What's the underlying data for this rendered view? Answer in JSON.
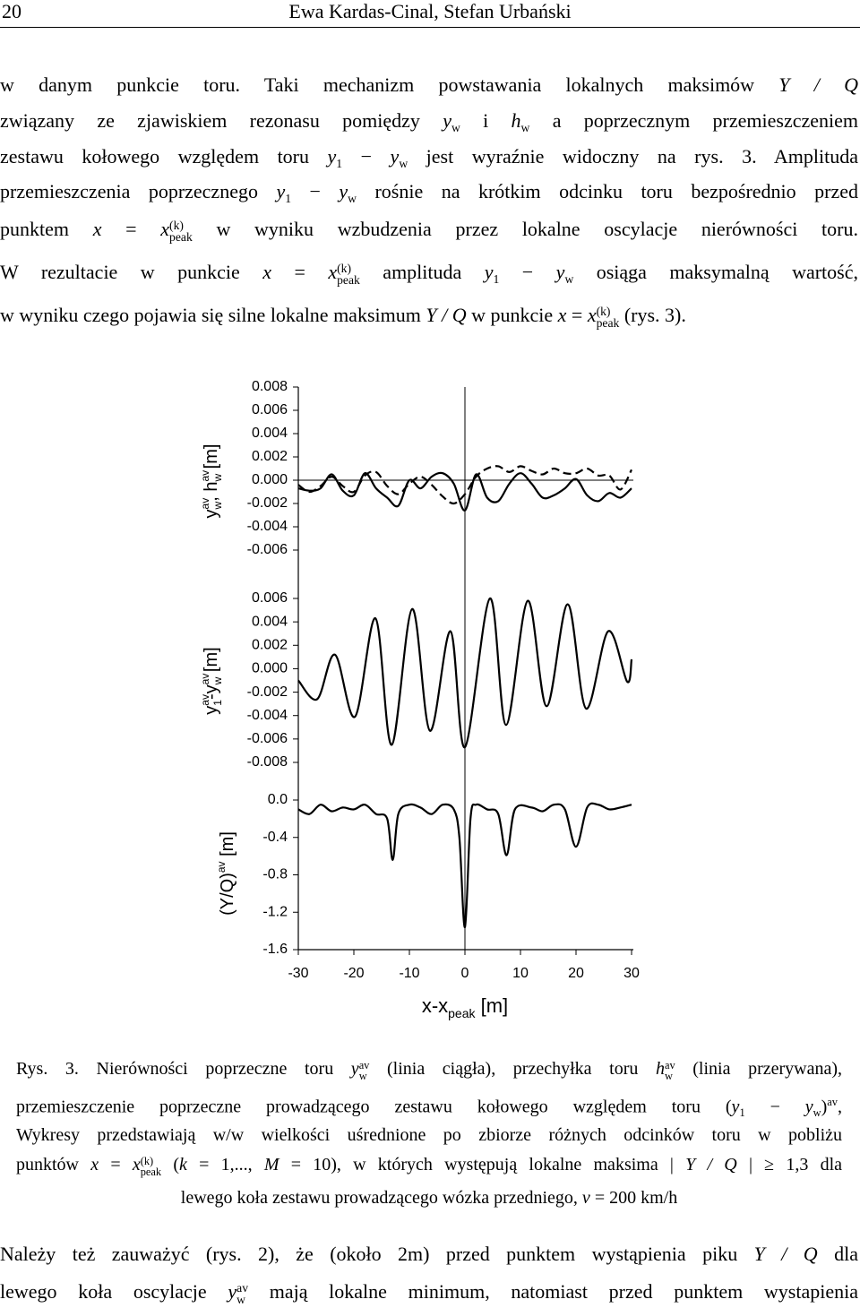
{
  "header": {
    "page": "20",
    "authors": "Ewa Kardas-Cinal, Stefan Urbański"
  },
  "text_top": {
    "lines": [
      [
        "w danym punkcie toru. Taki mechanizm powstawania lokalnych maksimów ",
        {
          "i": "Y / Q"
        }
      ],
      [
        "związany ze zjawiskiem rezonasu pomiędzy ",
        {
          "i": "y"
        },
        {
          "sub": "w"
        },
        " i ",
        {
          "i": "h"
        },
        {
          "sub": "w"
        },
        " a poprzecznym przemieszczeniem"
      ],
      [
        "zestawu kołowego względem toru ",
        {
          "i": "y"
        },
        {
          "sub": "1"
        },
        " − ",
        {
          "i": "y"
        },
        {
          "sub": "w"
        },
        " jest wyraźnie widoczny na rys. 3. Amplituda"
      ],
      [
        "przemieszczenia poprzecznego ",
        {
          "i": "y"
        },
        {
          "sub": "1"
        },
        " − ",
        {
          "i": "y"
        },
        {
          "sub": "w"
        },
        " rośnie na krótkim odcinku toru bezpośrednio przed"
      ],
      [
        "punktem ",
        {
          "i": "x"
        },
        " = ",
        {
          "i": "x"
        },
        {
          "sub": "peak",
          "sup": "(k)"
        },
        " w wyniku wzbudzenia przez lokalne oscylacje nierówności toru."
      ],
      [
        "W rezultacie w punkcie ",
        {
          "i": "x"
        },
        " = ",
        {
          "i": "x"
        },
        {
          "sub": "peak",
          "sup": "(k)"
        },
        " amplituda ",
        {
          "i": "y"
        },
        {
          "sub": "1"
        },
        " − ",
        {
          "i": "y"
        },
        {
          "sub": "w"
        },
        " osiąga maksymalną wartość,"
      ],
      [
        "w wyniku czego pojawia się silne lokalne maksimum ",
        {
          "i": "Y / Q"
        },
        " w punkcie ",
        {
          "i": "x"
        },
        " = ",
        {
          "i": "x"
        },
        {
          "sub": "peak",
          "sup": "(k)"
        },
        " (rys. 3)."
      ]
    ]
  },
  "chart_data": {
    "type": "line",
    "xlim": [
      -30,
      30
    ],
    "xticks": [
      -30,
      -20,
      -10,
      0,
      10,
      20,
      30
    ],
    "xlabel": [
      "x-x",
      {
        "sub": "peak"
      },
      " [m]"
    ],
    "vline": 0,
    "panels": [
      {
        "ylabel": [
          "y",
          {
            "sub": "w",
            "sup": "av"
          },
          ", h",
          {
            "sub": "w",
            "sup": "av"
          },
          " [m]"
        ],
        "ylim": [
          -0.006,
          0.008
        ],
        "yticks": [
          {
            "value": 0.008,
            "label": "0.008"
          },
          {
            "value": 0.006,
            "label": "0.006"
          },
          {
            "value": 0.004,
            "label": "0.004"
          },
          {
            "value": 0.002,
            "label": "0.002"
          },
          {
            "value": 0,
            "label": "0.000"
          },
          {
            "value": -0.002,
            "label": "-0.002"
          },
          {
            "value": -0.004,
            "label": "-0.004"
          },
          {
            "value": -0.006,
            "label": "-0.006"
          }
        ],
        "zero_line": true,
        "x": [
          -30,
          -28,
          -26,
          -24,
          -22,
          -20,
          -18,
          -16,
          -14,
          -12,
          -10,
          -8,
          -6,
          -4,
          -2,
          0,
          2,
          4,
          6,
          8,
          10,
          12,
          14,
          16,
          18,
          20,
          22,
          24,
          26,
          28,
          30
        ],
        "series": [
          {
            "color": "#000000",
            "style": "solid",
            "values": [
              -0.0007,
              -0.0009,
              -0.0007,
              0.0005,
              -0.0009,
              -0.0013,
              0.0006,
              -0.0007,
              -0.0015,
              -0.0022,
              0.0,
              -0.0007,
              0.0003,
              0.0006,
              -0.0003,
              -0.0026,
              0.0005,
              -0.0015,
              -0.0018,
              -0.0003,
              0.0006,
              -0.0003,
              -0.0015,
              -0.0013,
              -0.0007,
              0.0001,
              -0.0013,
              -0.0018,
              -0.0011,
              -0.0015,
              -0.0007
            ]
          },
          {
            "color": "#000000",
            "style": "dashed",
            "values": [
              -0.0004,
              -0.001,
              -0.0005,
              0.0003,
              -0.0005,
              -0.001,
              0.0004,
              0.0007,
              -0.0005,
              -0.0012,
              -0.0003,
              0.0003,
              -0.0004,
              -0.0014,
              -0.002,
              -0.0012,
              0.0003,
              0.001,
              0.0012,
              0.0007,
              0.0012,
              0.0008,
              0.0005,
              0.001,
              0.0006,
              0.0006,
              0.001,
              0.0004,
              0.0004,
              -0.0008,
              0.0009
            ]
          }
        ]
      },
      {
        "ylabel": [
          "y",
          {
            "sub": "1",
            "sup": "av"
          },
          "-y",
          {
            "sub": "w",
            "sup": "av"
          },
          " [m]"
        ],
        "ylim": [
          -0.008,
          0.006
        ],
        "yticks": [
          {
            "value": 0.006,
            "label": "0.006"
          },
          {
            "value": 0.004,
            "label": "0.004"
          },
          {
            "value": 0.002,
            "label": "0.002"
          },
          {
            "value": 0,
            "label": "0.000"
          },
          {
            "value": -0.002,
            "label": "-0.002"
          },
          {
            "value": -0.004,
            "label": "-0.004"
          },
          {
            "value": -0.006,
            "label": "-0.006"
          },
          {
            "value": -0.008,
            "label": "-0.008"
          }
        ],
        "zero_line": false,
        "x": [
          -30,
          -26.6,
          -23.4,
          -19.8,
          -16.1,
          -13.2,
          -9.5,
          -6.3,
          -2.6,
          0,
          4.5,
          7.4,
          11.3,
          14.7,
          18.5,
          21.8,
          25.8,
          29.2,
          30
        ],
        "series": [
          {
            "color": "#000000",
            "style": "solid",
            "values": [
              -0.001,
              -0.0026,
              0.0012,
              -0.0041,
              0.0043,
              -0.0065,
              0.0051,
              -0.0053,
              0.0032,
              -0.0067,
              0.006,
              -0.0048,
              0.0058,
              -0.0032,
              0.0055,
              -0.0034,
              0.0032,
              -0.0011,
              0.0008
            ]
          }
        ]
      },
      {
        "ylabel": [
          "(Y/Q)",
          {
            "sup": "av"
          },
          " [m]"
        ],
        "ylim": [
          -1.6,
          0.0
        ],
        "yticks": [
          {
            "value": 0,
            "label": "0.0"
          },
          {
            "value": -0.4,
            "label": "-0.4"
          },
          {
            "value": -0.8,
            "label": "-0.8"
          },
          {
            "value": -1.2,
            "label": "-1.2"
          },
          {
            "value": -1.6,
            "label": "-1.6"
          }
        ],
        "zero_line": false,
        "x": [
          -30,
          -28,
          -26,
          -24,
          -22,
          -20,
          -18,
          -16,
          -14,
          -13,
          -12,
          -10,
          -8,
          -6,
          -4,
          -2,
          -1,
          0,
          1,
          2,
          4,
          6,
          7.5,
          9,
          12,
          14,
          16,
          18,
          20,
          22,
          24,
          26,
          28,
          30
        ],
        "series": [
          {
            "color": "#000000",
            "style": "solid",
            "values": [
              -0.1,
              -0.15,
              -0.05,
              -0.12,
              -0.08,
              -0.1,
              -0.05,
              -0.15,
              -0.2,
              -0.64,
              -0.15,
              -0.05,
              -0.08,
              -0.15,
              -0.05,
              -0.1,
              -0.4,
              -1.36,
              -0.2,
              -0.05,
              -0.1,
              -0.15,
              -0.59,
              -0.1,
              -0.08,
              -0.12,
              -0.05,
              -0.1,
              -0.5,
              -0.08,
              -0.05,
              -0.1,
              -0.08,
              -0.05
            ]
          }
        ]
      }
    ]
  },
  "caption": {
    "lines": [
      [
        "Rys. 3. Nierówności poprzeczne toru ",
        {
          "i": "y"
        },
        {
          "sub": "w",
          "sup": "av"
        },
        " (linia ciągła), przechyłka toru ",
        {
          "i": "h"
        },
        {
          "sub": "w",
          "sup": "av"
        },
        " (linia przerywana),"
      ],
      [
        "przemieszczenie poprzeczne prowadzącego zestawu kołowego względem toru (",
        {
          "i": "y"
        },
        {
          "sub": "1"
        },
        " − ",
        {
          "i": "y"
        },
        {
          "sub": "w"
        },
        ")",
        {
          "sup": "av"
        },
        ","
      ],
      [
        "Wykresy przedstawiają w/w wielkości uśrednione po zbiorze różnych odcinków toru w pobliżu"
      ],
      [
        "punktów ",
        {
          "i": "x"
        },
        " = ",
        {
          "i": "x"
        },
        {
          "sub": "peak",
          "sup": "(k)"
        },
        " (",
        {
          "i": "k"
        },
        " = 1,..., ",
        {
          "i": "M"
        },
        " = 10), w których występują lokalne maksima | ",
        {
          "i": "Y / Q"
        },
        " | ≥ 1,3 dla"
      ],
      [
        "lewego koła zestawu prowadzącego wózka przedniego, ",
        {
          "i": "v"
        },
        " = 200 km/h"
      ]
    ]
  },
  "text_bottom": {
    "lines": [
      [
        "Należy też zauważyć (rys. 2), że (około 2m) przed punktem wystąpienia piku ",
        {
          "i": "Y / Q"
        },
        " dla"
      ],
      [
        "lewego koła oscylacje ",
        {
          "i": "y"
        },
        {
          "sub": "w",
          "sup": "av"
        },
        " mają lokalne minimum, natomiast przed punktem wystapienia"
      ]
    ]
  }
}
